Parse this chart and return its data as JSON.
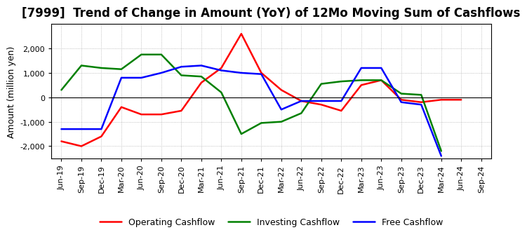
{
  "title": "[7999]  Trend of Change in Amount (YoY) of 12Mo Moving Sum of Cashflows",
  "ylabel": "Amount (million yen)",
  "x_labels": [
    "Jun-19",
    "Sep-19",
    "Dec-19",
    "Mar-20",
    "Jun-20",
    "Sep-20",
    "Dec-20",
    "Mar-21",
    "Jun-21",
    "Sep-21",
    "Dec-21",
    "Mar-22",
    "Jun-22",
    "Sep-22",
    "Dec-22",
    "Mar-23",
    "Jun-23",
    "Sep-23",
    "Dec-23",
    "Mar-24",
    "Jun-24",
    "Sep-24"
  ],
  "operating": [
    -1800,
    -2000,
    -1600,
    -400,
    -700,
    -700,
    -550,
    600,
    1200,
    2600,
    1000,
    300,
    -150,
    -300,
    -550,
    500,
    700,
    -100,
    -200,
    -100,
    -100,
    null
  ],
  "investing": [
    300,
    1300,
    1200,
    1150,
    1750,
    1750,
    900,
    850,
    200,
    -1500,
    -1050,
    -1000,
    -650,
    550,
    650,
    700,
    700,
    150,
    100,
    -2200,
    null,
    null
  ],
  "free": [
    -1300,
    -1300,
    -1300,
    800,
    800,
    1000,
    1250,
    1300,
    1100,
    1000,
    950,
    -500,
    -150,
    -150,
    -150,
    1200,
    1200,
    -200,
    -300,
    -2400,
    null,
    null
  ],
  "operating_color": "#ff0000",
  "investing_color": "#008000",
  "free_color": "#0000ff",
  "ylim": [
    -2500,
    3000
  ],
  "yticks": [
    -2000,
    -1000,
    0,
    1000,
    2000
  ],
  "background_color": "#ffffff",
  "grid_color": "#b0b0b0",
  "title_fontsize": 12,
  "axis_fontsize": 9,
  "tick_fontsize": 8,
  "linewidth": 1.8
}
